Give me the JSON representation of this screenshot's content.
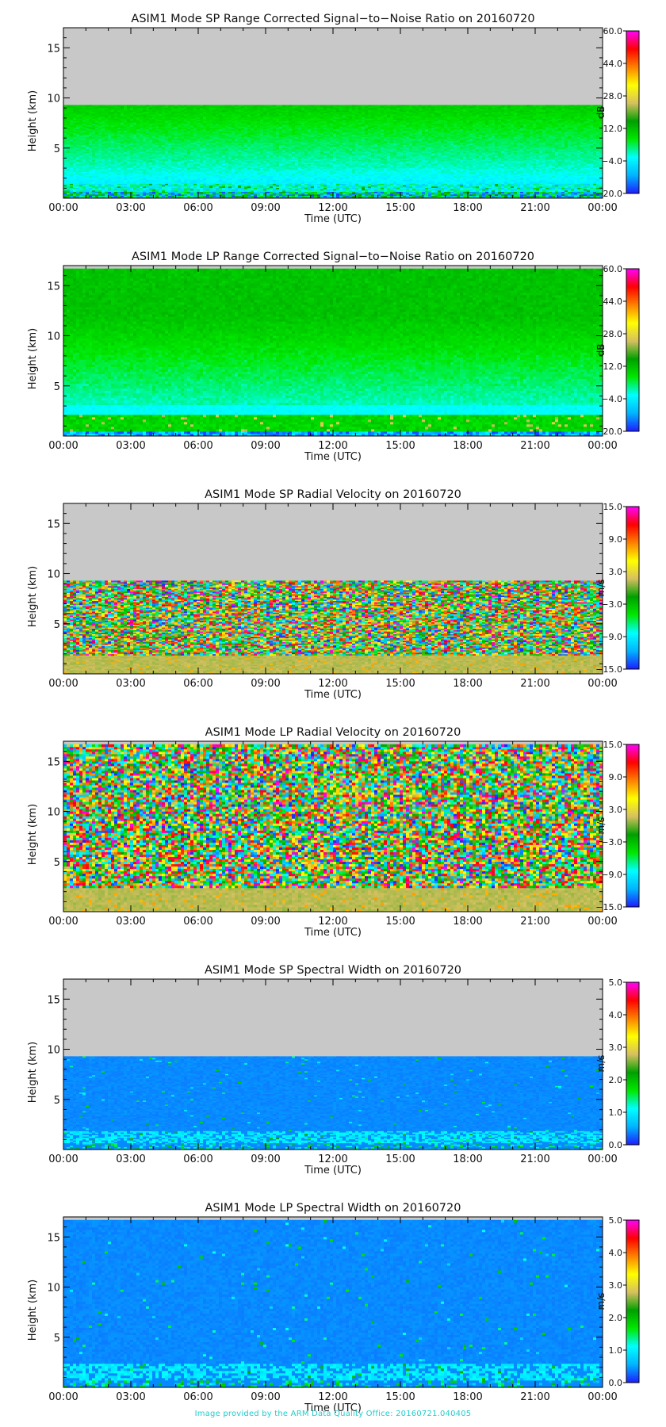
{
  "footer": "Image provided by the ARM Data Quality Office: 20160721.040405",
  "chart_data": [
    {
      "type": "heatmap",
      "title": "ASIM1 Mode SP Range Corrected Signal−to−Noise Ratio on 20160720",
      "xlabel": "Time (UTC)",
      "ylabel": "Height (km)",
      "xticks": [
        "00:00",
        "03:00",
        "06:00",
        "09:00",
        "12:00",
        "15:00",
        "18:00",
        "21:00",
        "00:00"
      ],
      "xlim": [
        0,
        24
      ],
      "ylim": [
        0,
        17
      ],
      "yticks": [
        5,
        10,
        15
      ],
      "data_top_km": 9.3,
      "colorbar": {
        "label": "dB",
        "ticks": [
          "60.0",
          "44.0",
          "28.0",
          "12.0",
          "−4.0",
          "−20.0"
        ],
        "range": [
          -20,
          60
        ]
      },
      "profile": "snr_sp",
      "grid": false
    },
    {
      "type": "heatmap",
      "title": "ASIM1 Mode LP Range Corrected Signal−to−Noise Ratio on 20160720",
      "xlabel": "Time (UTC)",
      "ylabel": "Height (km)",
      "xticks": [
        "00:00",
        "03:00",
        "06:00",
        "09:00",
        "12:00",
        "15:00",
        "18:00",
        "21:00",
        "00:00"
      ],
      "xlim": [
        0,
        24
      ],
      "ylim": [
        0,
        17
      ],
      "yticks": [
        5,
        10,
        15
      ],
      "data_top_km": 16.7,
      "colorbar": {
        "label": "dB",
        "ticks": [
          "60.0",
          "44.0",
          "28.0",
          "12.0",
          "−4.0",
          "−20.0"
        ],
        "range": [
          -20,
          60
        ]
      },
      "profile": "snr_lp",
      "grid": false
    },
    {
      "type": "heatmap",
      "title": "ASIM1 Mode SP Radial Velocity  on 20160720",
      "xlabel": "Time (UTC)",
      "ylabel": "Height (km)",
      "xticks": [
        "00:00",
        "03:00",
        "06:00",
        "09:00",
        "12:00",
        "15:00",
        "18:00",
        "21:00",
        "00:00"
      ],
      "xlim": [
        0,
        24
      ],
      "ylim": [
        0,
        17
      ],
      "yticks": [
        5,
        10,
        15
      ],
      "data_top_km": 9.3,
      "colorbar": {
        "label": "m/s",
        "ticks": [
          "15.0",
          "9.0",
          "3.0",
          "−3.0",
          "−9.0",
          "−15.0"
        ],
        "range": [
          -15,
          15
        ]
      },
      "profile": "vel_sp",
      "grid": false
    },
    {
      "type": "heatmap",
      "title": "ASIM1 Mode LP Radial Velocity  on 20160720",
      "xlabel": "Time (UTC)",
      "ylabel": "Height (km)",
      "xticks": [
        "00:00",
        "03:00",
        "06:00",
        "09:00",
        "12:00",
        "15:00",
        "18:00",
        "21:00",
        "00:00"
      ],
      "xlim": [
        0,
        24
      ],
      "ylim": [
        0,
        17
      ],
      "yticks": [
        5,
        10,
        15
      ],
      "data_top_km": 16.7,
      "colorbar": {
        "label": "m/s",
        "ticks": [
          "15.0",
          "9.0",
          "3.0",
          "−3.0",
          "−9.0",
          "−15.0"
        ],
        "range": [
          -15,
          15
        ]
      },
      "profile": "vel_lp",
      "grid": false
    },
    {
      "type": "heatmap",
      "title": "ASIM1 Mode SP Spectral Width  on 20160720",
      "xlabel": "Time (UTC)",
      "ylabel": "Height (km)",
      "xticks": [
        "00:00",
        "03:00",
        "06:00",
        "09:00",
        "12:00",
        "15:00",
        "18:00",
        "21:00",
        "00:00"
      ],
      "xlim": [
        0,
        24
      ],
      "ylim": [
        0,
        17
      ],
      "yticks": [
        5,
        10,
        15
      ],
      "data_top_km": 9.3,
      "colorbar": {
        "label": "m/s",
        "ticks": [
          "5.0",
          "4.0",
          "3.0",
          "2.0",
          "1.0",
          "0.0"
        ],
        "range": [
          0,
          5
        ]
      },
      "profile": "sw_sp",
      "grid": false
    },
    {
      "type": "heatmap",
      "title": "ASIM1 Mode LP Spectral Width  on 20160720",
      "xlabel": "Time (UTC)",
      "ylabel": "Height (km)",
      "xticks": [
        "00:00",
        "03:00",
        "06:00",
        "09:00",
        "12:00",
        "15:00",
        "18:00",
        "21:00",
        "00:00"
      ],
      "xlim": [
        0,
        24
      ],
      "ylim": [
        0,
        17
      ],
      "yticks": [
        5,
        10,
        15
      ],
      "data_top_km": 16.7,
      "colorbar": {
        "label": "m/s",
        "ticks": [
          "5.0",
          "4.0",
          "3.0",
          "2.0",
          "1.0",
          "0.0"
        ],
        "range": [
          0,
          5
        ]
      },
      "profile": "sw_lp",
      "grid": false
    }
  ],
  "colors": {
    "nodata": "#c8c8c8",
    "colormap": [
      "#1e1eff",
      "#00b4ff",
      "#00ffff",
      "#00e800",
      "#00a000",
      "#d6c060",
      "#ffff00",
      "#ff8000",
      "#ff0000",
      "#ff00ff"
    ]
  }
}
